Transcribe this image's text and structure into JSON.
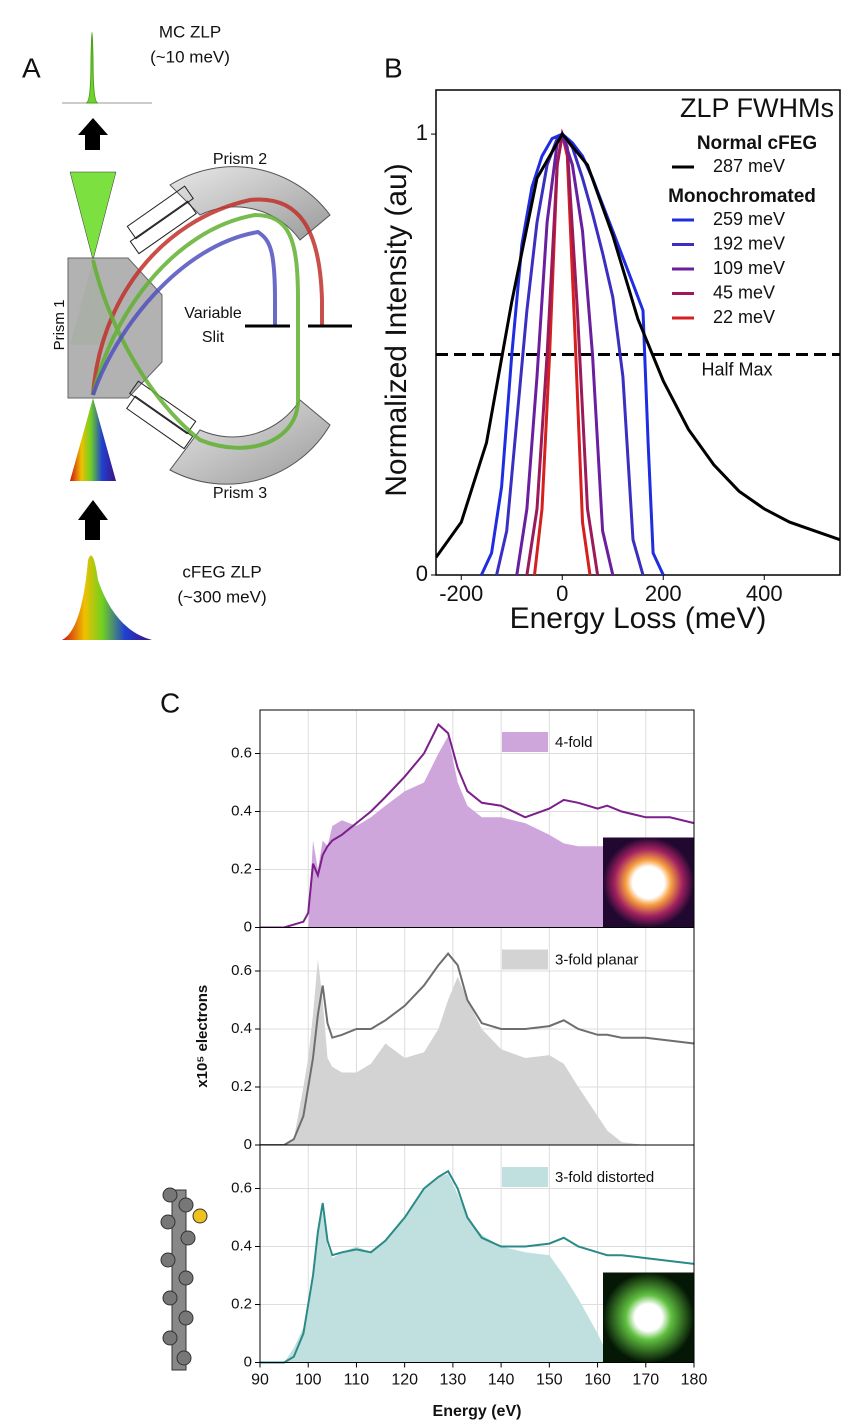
{
  "panel_labels": [
    "A",
    "B",
    "C"
  ],
  "diagram": {
    "mc_zlp": "MC ZLP",
    "mc_width": "(~10 meV)",
    "prism_2": "Prism 2",
    "prism_1": "Prism 1",
    "slit_1": "Variable",
    "slit_2": "Slit",
    "prism_3": "Prism 3",
    "cfeg_zlp": "cFEG ZLP",
    "cfeg_width": "(~300 meV)"
  },
  "chart_data": [
    {
      "type": "line",
      "xlabel": "Energy Loss (meV)",
      "ylabel": "Normalized Intensity (au)",
      "legend_title": "ZLP FWHMs",
      "legend_headers": [
        "Normal cFEG",
        "Monochromated"
      ],
      "xlim": [
        -250,
        550
      ],
      "ylim": [
        0,
        1.1
      ],
      "xticks": [
        -200,
        0,
        200,
        400
      ],
      "yticks": [
        0,
        1
      ],
      "hline": {
        "value": 0.5,
        "label": "Half Max"
      },
      "series": [
        {
          "name": "287 meV",
          "color": "#000000",
          "x": [
            -250,
            -200,
            -150,
            -100,
            -50,
            0,
            50,
            100,
            150,
            200,
            250,
            300,
            350,
            400,
            450,
            500,
            550
          ],
          "values": [
            0.04,
            0.12,
            0.3,
            0.62,
            0.9,
            1.0,
            0.93,
            0.77,
            0.58,
            0.44,
            0.33,
            0.25,
            0.19,
            0.15,
            0.12,
            0.1,
            0.08
          ]
        },
        {
          "name": "259 meV",
          "color": "#1f2de0",
          "x": [
            -160,
            -140,
            -120,
            -100,
            -80,
            -60,
            -40,
            -20,
            0,
            20,
            40,
            60,
            80,
            100,
            120,
            140,
            160,
            170,
            180,
            200
          ],
          "values": [
            0,
            0.05,
            0.2,
            0.5,
            0.75,
            0.88,
            0.95,
            0.99,
            1.0,
            0.98,
            0.95,
            0.9,
            0.84,
            0.78,
            0.72,
            0.66,
            0.6,
            0.3,
            0.05,
            0
          ]
        },
        {
          "name": "192 meV",
          "color": "#3a2fc0",
          "x": [
            -130,
            -110,
            -90,
            -70,
            -50,
            -30,
            -10,
            0,
            20,
            40,
            60,
            80,
            100,
            120,
            140,
            160
          ],
          "values": [
            0,
            0.1,
            0.35,
            0.6,
            0.8,
            0.93,
            0.99,
            1.0,
            0.97,
            0.9,
            0.82,
            0.73,
            0.63,
            0.45,
            0.08,
            0
          ]
        },
        {
          "name": "109 meV",
          "color": "#6a1fa0",
          "x": [
            -90,
            -70,
            -50,
            -30,
            -10,
            0,
            20,
            40,
            60,
            80,
            100
          ],
          "values": [
            0,
            0.15,
            0.45,
            0.8,
            0.98,
            1.0,
            0.93,
            0.78,
            0.5,
            0.1,
            0
          ]
        },
        {
          "name": "45 meV",
          "color": "#9a1a5a",
          "x": [
            -70,
            -50,
            -30,
            -10,
            0,
            10,
            30,
            50,
            70
          ],
          "values": [
            0,
            0.15,
            0.5,
            0.93,
            1.0,
            0.97,
            0.6,
            0.15,
            0
          ]
        },
        {
          "name": "22 meV",
          "color": "#d61f1f",
          "x": [
            -55,
            -40,
            -25,
            -10,
            0,
            10,
            25,
            40,
            55
          ],
          "values": [
            0,
            0.15,
            0.5,
            0.93,
            1.0,
            0.95,
            0.55,
            0.12,
            0
          ]
        }
      ]
    },
    {
      "type": "area",
      "xlim": [
        90,
        180
      ],
      "ylim": [
        0,
        0.75
      ],
      "xticks": [
        90,
        100,
        110,
        120,
        130,
        140,
        150,
        160,
        170,
        180
      ],
      "yticks": [
        0,
        0.2,
        0.4,
        0.6
      ],
      "grid": true,
      "x": [
        90,
        95,
        97,
        99,
        100,
        101,
        102,
        103,
        104,
        105,
        107,
        110,
        113,
        116,
        120,
        124,
        127,
        129,
        131,
        133,
        136,
        140,
        145,
        150,
        153,
        156,
        160,
        162,
        165,
        170,
        175,
        180
      ],
      "series": [
        {
          "name": "4-fold",
          "color": "#cfa6dc",
          "values": [
            0,
            0,
            0,
            0,
            0,
            0.3,
            0.2,
            0.3,
            0.28,
            0.35,
            0.37,
            0.35,
            0.38,
            0.42,
            0.47,
            0.5,
            0.6,
            0.66,
            0.5,
            0.42,
            0.38,
            0.38,
            0.36,
            0.32,
            0.29,
            0.28,
            0.28,
            0.28,
            0,
            0,
            0,
            0
          ]
        },
        {
          "color": "#7b1f8a",
          "values": [
            0,
            0,
            0.01,
            0.02,
            0.05,
            0.22,
            0.18,
            0.25,
            0.28,
            0.3,
            0.32,
            0.36,
            0.4,
            0.45,
            0.52,
            0.6,
            0.7,
            0.67,
            0.55,
            0.47,
            0.43,
            0.42,
            0.38,
            0.41,
            0.44,
            0.43,
            0.41,
            0.42,
            0.4,
            0.38,
            0.38,
            0.36
          ]
        }
      ]
    },
    {
      "type": "area",
      "ylabel": "x10⁵ electrons",
      "xlim": [
        90,
        180
      ],
      "ylim": [
        0,
        0.75
      ],
      "xticks": [
        90,
        100,
        110,
        120,
        130,
        140,
        150,
        160,
        170,
        180
      ],
      "yticks": [
        0,
        0.2,
        0.4,
        0.6
      ],
      "grid": true,
      "x": [
        90,
        95,
        97,
        99,
        100,
        101,
        102,
        103,
        104,
        105,
        107,
        110,
        113,
        116,
        120,
        124,
        127,
        129,
        131,
        133,
        136,
        140,
        145,
        150,
        153,
        156,
        160,
        162,
        165,
        170,
        175,
        180
      ],
      "series": [
        {
          "name": "3-fold planar",
          "color": "#d3d3d3",
          "values": [
            0,
            0,
            0.02,
            0.2,
            0.3,
            0.45,
            0.64,
            0.5,
            0.3,
            0.27,
            0.25,
            0.25,
            0.28,
            0.35,
            0.3,
            0.32,
            0.4,
            0.5,
            0.58,
            0.5,
            0.4,
            0.33,
            0.3,
            0.31,
            0.28,
            0.2,
            0.1,
            0.05,
            0.01,
            0,
            0,
            0
          ]
        },
        {
          "color": "#6e6e6e",
          "values": [
            0,
            0,
            0.02,
            0.1,
            0.2,
            0.3,
            0.45,
            0.55,
            0.42,
            0.37,
            0.38,
            0.4,
            0.4,
            0.43,
            0.48,
            0.55,
            0.62,
            0.66,
            0.62,
            0.5,
            0.42,
            0.4,
            0.4,
            0.41,
            0.43,
            0.4,
            0.38,
            0.38,
            0.37,
            0.37,
            0.36,
            0.35
          ]
        }
      ]
    },
    {
      "type": "area",
      "xlabel": "Energy (eV)",
      "xlim": [
        90,
        180
      ],
      "ylim": [
        0,
        0.75
      ],
      "xticks": [
        90,
        100,
        110,
        120,
        130,
        140,
        150,
        160,
        170,
        180
      ],
      "yticks": [
        0,
        0.2,
        0.4,
        0.6
      ],
      "grid": true,
      "x": [
        90,
        95,
        97,
        99,
        100,
        101,
        102,
        103,
        104,
        105,
        107,
        110,
        113,
        116,
        120,
        124,
        127,
        129,
        131,
        133,
        136,
        140,
        145,
        150,
        153,
        156,
        160,
        162,
        165,
        170,
        175,
        180
      ],
      "series": [
        {
          "name": "3-fold distorted",
          "color": "#bfe0de",
          "values": [
            0,
            0,
            0.05,
            0.12,
            0.2,
            0.3,
            0.45,
            0.52,
            0.4,
            0.36,
            0.38,
            0.4,
            0.38,
            0.42,
            0.5,
            0.6,
            0.64,
            0.65,
            0.58,
            0.5,
            0.44,
            0.4,
            0.38,
            0.37,
            0.3,
            0.22,
            0.1,
            0.03,
            0,
            0,
            0,
            0
          ]
        },
        {
          "color": "#2a8a88",
          "values": [
            0,
            0,
            0.02,
            0.1,
            0.2,
            0.3,
            0.45,
            0.55,
            0.42,
            0.37,
            0.38,
            0.39,
            0.38,
            0.42,
            0.5,
            0.6,
            0.64,
            0.66,
            0.6,
            0.5,
            0.43,
            0.4,
            0.4,
            0.41,
            0.43,
            0.4,
            0.38,
            0.37,
            0.37,
            0.36,
            0.35,
            0.34
          ]
        }
      ]
    }
  ]
}
